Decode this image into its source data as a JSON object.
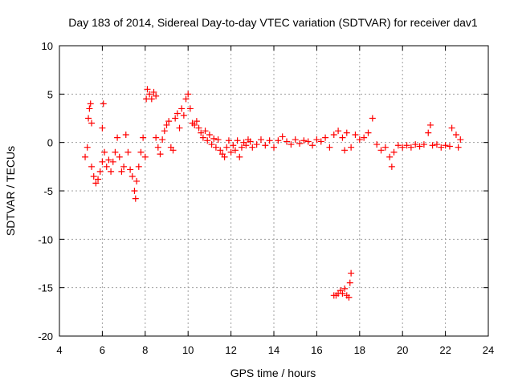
{
  "chart_data": {
    "type": "scatter",
    "title": "Day 183 of 2014, Sidereal Day-to-day VTEC variation (SDTVAR) for receiver dav1",
    "xlabel": "GPS time / hours",
    "ylabel": "SDTVAR / TECUs",
    "xlim": [
      4,
      24
    ],
    "ylim": [
      -20,
      10
    ],
    "x_ticks": [
      4,
      6,
      8,
      10,
      12,
      14,
      16,
      18,
      20,
      22,
      24
    ],
    "y_ticks": [
      -20,
      -15,
      -10,
      -5,
      0,
      5,
      10
    ],
    "grid": true,
    "marker": "+",
    "series": [
      {
        "name": "dav1",
        "color": "#ff0000",
        "points": [
          [
            5.2,
            -1.5
          ],
          [
            5.3,
            -0.5
          ],
          [
            5.35,
            2.5
          ],
          [
            5.4,
            3.5
          ],
          [
            5.45,
            4.0
          ],
          [
            5.5,
            2.0
          ],
          [
            5.5,
            -2.5
          ],
          [
            5.6,
            -3.5
          ],
          [
            5.7,
            -4.2
          ],
          [
            5.8,
            -3.8
          ],
          [
            5.9,
            -3.0
          ],
          [
            6.0,
            -2.0
          ],
          [
            6.0,
            1.5
          ],
          [
            6.05,
            4.0
          ],
          [
            6.1,
            -1.0
          ],
          [
            6.2,
            -2.5
          ],
          [
            6.3,
            -1.8
          ],
          [
            6.4,
            -3.0
          ],
          [
            6.5,
            -2.0
          ],
          [
            6.6,
            -1.0
          ],
          [
            6.7,
            0.5
          ],
          [
            6.8,
            -1.5
          ],
          [
            6.9,
            -3.0
          ],
          [
            7.0,
            -2.5
          ],
          [
            7.1,
            0.8
          ],
          [
            7.2,
            -1.0
          ],
          [
            7.3,
            -2.8
          ],
          [
            7.4,
            -3.5
          ],
          [
            7.5,
            -5.0
          ],
          [
            7.55,
            -5.8
          ],
          [
            7.6,
            -4.0
          ],
          [
            7.7,
            -2.5
          ],
          [
            7.8,
            -1.0
          ],
          [
            7.9,
            0.5
          ],
          [
            8.0,
            -1.5
          ],
          [
            8.05,
            4.5
          ],
          [
            8.1,
            5.5
          ],
          [
            8.2,
            5.0
          ],
          [
            8.3,
            4.5
          ],
          [
            8.4,
            5.2
          ],
          [
            8.5,
            4.8
          ],
          [
            8.5,
            0.5
          ],
          [
            8.6,
            -0.5
          ],
          [
            8.7,
            -1.2
          ],
          [
            8.8,
            0.3
          ],
          [
            8.9,
            1.2
          ],
          [
            9.0,
            1.8
          ],
          [
            9.1,
            2.2
          ],
          [
            9.2,
            -0.5
          ],
          [
            9.3,
            -0.8
          ],
          [
            9.4,
            2.5
          ],
          [
            9.5,
            3.0
          ],
          [
            9.6,
            1.5
          ],
          [
            9.7,
            3.5
          ],
          [
            9.8,
            2.8
          ],
          [
            9.9,
            4.5
          ],
          [
            10.0,
            5.0
          ],
          [
            10.1,
            3.5
          ],
          [
            10.2,
            2.0
          ],
          [
            10.3,
            1.8
          ],
          [
            10.4,
            2.2
          ],
          [
            10.5,
            1.5
          ],
          [
            10.6,
            1.0
          ],
          [
            10.7,
            0.5
          ],
          [
            10.8,
            1.2
          ],
          [
            10.9,
            0.2
          ],
          [
            11.0,
            0.8
          ],
          [
            11.1,
            -0.2
          ],
          [
            11.2,
            0.4
          ],
          [
            11.3,
            -0.5
          ],
          [
            11.4,
            0.3
          ],
          [
            11.5,
            -0.8
          ],
          [
            11.6,
            -1.2
          ],
          [
            11.7,
            -1.5
          ],
          [
            11.8,
            -0.5
          ],
          [
            11.9,
            0.2
          ],
          [
            12.0,
            -1.0
          ],
          [
            12.1,
            -0.3
          ],
          [
            12.2,
            -0.8
          ],
          [
            12.3,
            0.2
          ],
          [
            12.4,
            -1.5
          ],
          [
            12.5,
            -0.5
          ],
          [
            12.6,
            0.0
          ],
          [
            12.7,
            -0.3
          ],
          [
            12.8,
            0.3
          ],
          [
            12.9,
            0.1
          ],
          [
            13.0,
            -0.5
          ],
          [
            13.2,
            -0.2
          ],
          [
            13.4,
            0.3
          ],
          [
            13.6,
            -0.3
          ],
          [
            13.8,
            0.2
          ],
          [
            14.0,
            -0.5
          ],
          [
            14.2,
            0.2
          ],
          [
            14.4,
            0.6
          ],
          [
            14.6,
            0.1
          ],
          [
            14.8,
            -0.2
          ],
          [
            15.0,
            0.3
          ],
          [
            15.2,
            -0.1
          ],
          [
            15.4,
            0.2
          ],
          [
            15.6,
            0.1
          ],
          [
            15.8,
            -0.3
          ],
          [
            16.0,
            0.3
          ],
          [
            16.2,
            0.1
          ],
          [
            16.4,
            0.5
          ],
          [
            16.6,
            -0.5
          ],
          [
            16.8,
            0.8
          ],
          [
            17.0,
            1.2
          ],
          [
            17.2,
            0.5
          ],
          [
            17.3,
            -0.8
          ],
          [
            17.4,
            1.0
          ],
          [
            17.6,
            -0.5
          ],
          [
            17.8,
            0.8
          ],
          [
            18.0,
            0.3
          ],
          [
            18.2,
            0.5
          ],
          [
            18.4,
            1.0
          ],
          [
            18.6,
            2.5
          ],
          [
            18.8,
            -0.2
          ],
          [
            19.0,
            -0.8
          ],
          [
            19.2,
            -0.5
          ],
          [
            19.4,
            -1.5
          ],
          [
            19.5,
            -2.5
          ],
          [
            19.6,
            -1.0
          ],
          [
            19.8,
            -0.3
          ],
          [
            20.0,
            -0.5
          ],
          [
            20.2,
            -0.3
          ],
          [
            20.4,
            -0.5
          ],
          [
            20.6,
            -0.2
          ],
          [
            20.8,
            -0.4
          ],
          [
            21.0,
            -0.2
          ],
          [
            21.2,
            1.0
          ],
          [
            21.3,
            1.8
          ],
          [
            21.4,
            -0.3
          ],
          [
            21.6,
            -0.2
          ],
          [
            21.8,
            -0.5
          ],
          [
            22.0,
            -0.3
          ],
          [
            22.2,
            -0.4
          ],
          [
            22.3,
            1.5
          ],
          [
            22.5,
            0.8
          ],
          [
            22.6,
            -0.5
          ],
          [
            22.7,
            0.3
          ],
          [
            16.8,
            -15.8
          ],
          [
            16.9,
            -15.8
          ],
          [
            17.0,
            -15.6
          ],
          [
            17.1,
            -15.3
          ],
          [
            17.2,
            -15.6
          ],
          [
            17.3,
            -15.1
          ],
          [
            17.4,
            -15.8
          ],
          [
            17.5,
            -16.0
          ],
          [
            17.55,
            -14.5
          ],
          [
            17.6,
            -13.5
          ]
        ]
      }
    ]
  }
}
